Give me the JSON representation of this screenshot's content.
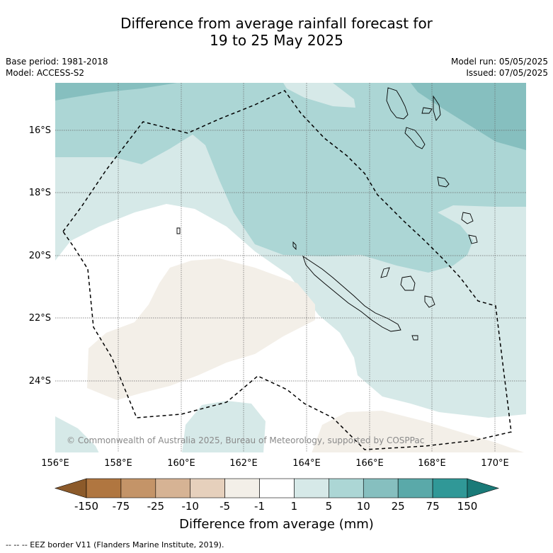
{
  "title": {
    "line1": "Difference from average rainfall forecast for",
    "line2": "19 to 25 May 2025"
  },
  "meta": {
    "base_period": "Base period: 1981-2018",
    "model": "Model: ACCESS-S2",
    "model_run": "Model run: 05/05/2025",
    "issued": "Issued: 07/05/2025"
  },
  "map": {
    "lat_labels": [
      "16°S",
      "18°S",
      "20°S",
      "22°S",
      "24°S"
    ],
    "lon_labels": [
      "156°E",
      "158°E",
      "160°E",
      "162°E",
      "164°E",
      "166°E",
      "168°E",
      "170°E"
    ],
    "credit": "© Commonwealth of Australia 2025, Bureau of Meteorology, supported by COSPPac"
  },
  "legend": {
    "title": "Difference from average (mm)",
    "ticks": [
      "-150",
      "-75",
      "-25",
      "-10",
      "-5",
      "-1",
      "1",
      "5",
      "10",
      "25",
      "75",
      "150"
    ],
    "colors": [
      "#8c5a2a",
      "#b07640",
      "#c49468",
      "#d6b394",
      "#e6d0bc",
      "#f3efe8",
      "#ffffff",
      "#d6e9e8",
      "#acd6d5",
      "#86bfbf",
      "#5aa9a9",
      "#309897",
      "#1a7a78"
    ]
  },
  "footnote": "--  --  -- EEZ border V11 (Flanders Marine Institute, 2019)."
}
